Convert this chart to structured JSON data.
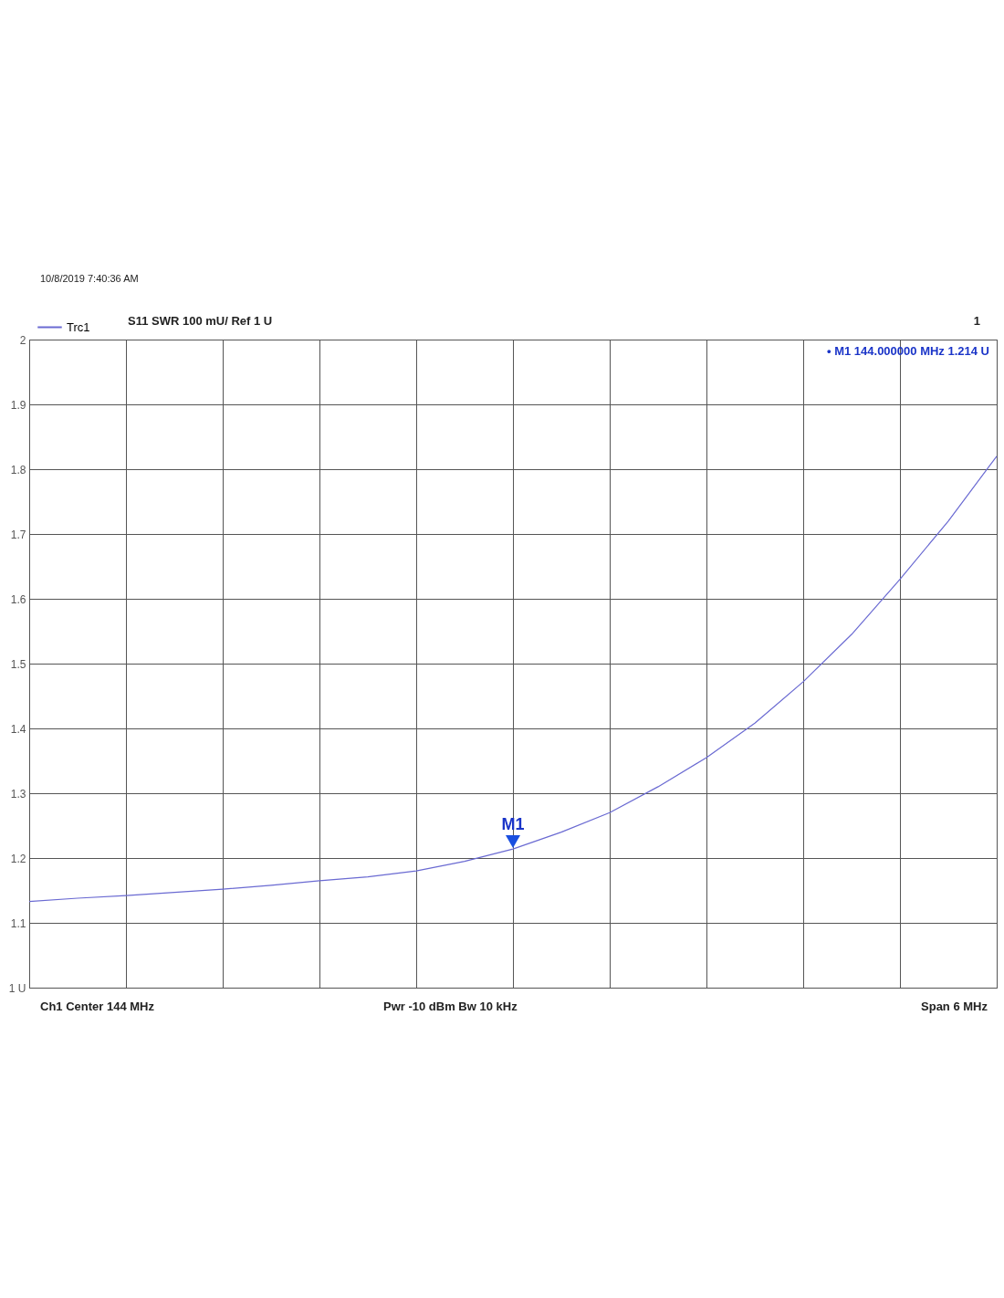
{
  "chart_data": {
    "type": "line",
    "annotations": [
      "10/8/2019 7:40:36 AM",
      "S11  SWR  100 mU/ Ref 1 U",
      "1",
      "• M1  144.000000  MHz  1.214 U",
      "Ch1  Center  144 MHz",
      "Pwr  -10 dBm  Bw  10 kHz",
      "Span  6 MHz",
      {
        "text": "M1",
        "y": 1.214
      }
    ],
    "categories": [
      null,
      null,
      null,
      null,
      null,
      null,
      null,
      null,
      null,
      null,
      null,
      null,
      null,
      null,
      null,
      null,
      null,
      null,
      null,
      null,
      null
    ],
    "series": [
      {
        "name": "Trc1",
        "color": "#6a6ad2",
        "values": [
          1.133,
          1.138,
          1.142,
          1.147,
          1.152,
          1.158,
          1.165,
          1.171,
          1.18,
          1.195,
          1.214,
          1.24,
          1.27,
          1.31,
          1.355,
          1.408,
          1.472,
          1.545,
          1.63,
          1.72,
          1.82
        ]
      }
    ],
    "ylim": [
      1,
      2
    ],
    "yticks": [
      {
        "value": 1,
        "label": "1 U"
      },
      1.1,
      1.2,
      1.3,
      1.4,
      1.5,
      1.6,
      1.7,
      1.8,
      1.9,
      2
    ],
    "grid": true,
    "legend": "top left"
  }
}
